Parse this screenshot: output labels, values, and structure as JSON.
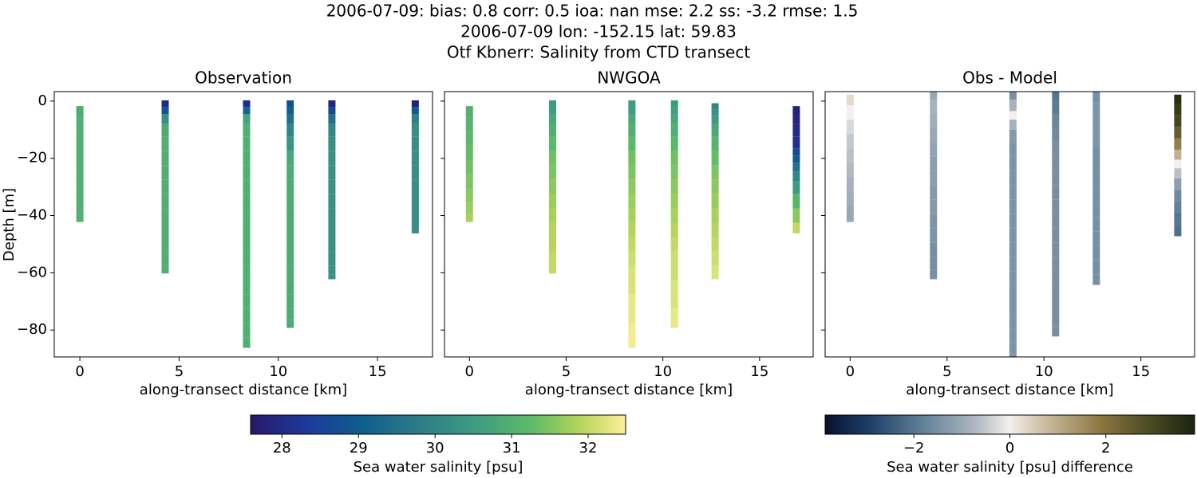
{
  "chart_data": {
    "type": "scatter",
    "title_lines": [
      "2006-07-09: bias: 0.8  corr: 0.5  ioa: nan  mse: 2.2  ss: -3.2  rmse: 1.5",
      "2006-07-09 lon: -152.15 lat: 59.83",
      "Otf Kbnerr: Salinity from CTD transect"
    ],
    "panels": [
      {
        "title": "Observation",
        "xlabel": "along-transect distance [km]",
        "ylabel": "Depth [m]",
        "show_ytick_labels": true,
        "colorbar": 0,
        "xlim": [
          -1.29,
          17.77
        ],
        "ylim": [
          -89.4,
          3.3
        ],
        "xticks": [
          0,
          5,
          10,
          15
        ],
        "yticks": [
          0,
          {
            "value": -20,
            "label": "−20"
          },
          {
            "value": -40,
            "label": "−40"
          },
          {
            "value": -60,
            "label": "−60"
          },
          {
            "value": -80,
            "label": "−80"
          }
        ],
        "profiles": [
          {
            "x": 0,
            "depth": [
              -3,
              -8,
              -13,
              -18,
              -23,
              -28,
              -33,
              -38,
              -41
            ],
            "values": [
              30.9,
              31,
              31,
              31,
              31,
              31,
              31,
              31,
              31
            ]
          },
          {
            "x": 4.3,
            "depth": [
              -1,
              -3,
              -6,
              -10,
              -15,
              -20,
              -25,
              -30,
              -35,
              -40,
              -45,
              -50,
              -55,
              -59
            ],
            "values": [
              27.9,
              28.8,
              30.2,
              30.9,
              31,
              31,
              31,
              31,
              31,
              31,
              31,
              31,
              31,
              31
            ]
          },
          {
            "x": 8.4,
            "depth": [
              -1,
              -3,
              -6,
              -10,
              -15,
              -20,
              -25,
              -30,
              -35,
              -40,
              -45,
              -50,
              -55,
              -60,
              -65,
              -70,
              -75,
              -80,
              -85
            ],
            "values": [
              28,
              29.2,
              30.7,
              31,
              31,
              31,
              31,
              31,
              31,
              31,
              31,
              31,
              31,
              31,
              31,
              31,
              31,
              31,
              31
            ]
          },
          {
            "x": 10.6,
            "depth": [
              -1,
              -3,
              -6,
              -10,
              -15,
              -20,
              -25,
              -30,
              -35,
              -40,
              -45,
              -50,
              -55,
              -60,
              -65,
              -70,
              -75,
              -78
            ],
            "values": [
              28.8,
              29.1,
              29.5,
              30,
              30.4,
              30.8,
              30.9,
              30.9,
              30.9,
              30.9,
              30.9,
              30.9,
              30.9,
              30.9,
              30.9,
              30.9,
              30.9,
              30.9
            ]
          },
          {
            "x": 12.7,
            "depth": [
              -1,
              -3,
              -6,
              -10,
              -15,
              -20,
              -25,
              -30,
              -35,
              -40,
              -45,
              -50,
              -55,
              -60,
              -61
            ],
            "values": [
              27.9,
              28.6,
              29.5,
              30,
              30.2,
              30.3,
              30.3,
              30.3,
              30.3,
              30.3,
              30.3,
              30.3,
              30.3,
              30.3,
              30.3
            ]
          },
          {
            "x": 16.9,
            "depth": [
              -1,
              -3,
              -6,
              -10,
              -15,
              -20,
              -25,
              -30,
              -35,
              -40,
              -45
            ],
            "values": [
              27.8,
              29,
              29.9,
              30.2,
              30.2,
              30.2,
              30.2,
              30.2,
              30.2,
              30.2,
              30.2
            ]
          }
        ]
      },
      {
        "title": "NWGOA",
        "xlabel": "along-transect distance [km]",
        "show_ytick_labels": false,
        "colorbar": 0,
        "xlim": [
          -1.29,
          17.77
        ],
        "ylim": [
          -89.4,
          3.3
        ],
        "xticks": [
          0,
          5,
          10,
          15
        ],
        "yticks": [
          0,
          -20,
          -40,
          -60,
          -80
        ],
        "profiles": [
          {
            "x": 0,
            "depth": [
              -3,
              -8,
              -13,
              -18,
              -23,
              -28,
              -33,
              -38,
              -41
            ],
            "values": [
              31,
              31.1,
              31.2,
              31.3,
              31.4,
              31.5,
              31.6,
              31.7,
              31.8
            ]
          },
          {
            "x": 4.3,
            "depth": [
              -1,
              -3,
              -6,
              -10,
              -15,
              -20,
              -25,
              -30,
              -35,
              -40,
              -45,
              -50,
              -55,
              -59
            ],
            "values": [
              30.5,
              30.6,
              30.8,
              31,
              31.2,
              31.4,
              31.5,
              31.6,
              31.7,
              31.8,
              31.9,
              31.9,
              32,
              32
            ]
          },
          {
            "x": 8.4,
            "depth": [
              -1,
              -3,
              -6,
              -10,
              -15,
              -20,
              -25,
              -30,
              -35,
              -40,
              -45,
              -50,
              -55,
              -60,
              -65,
              -70,
              -75,
              -80,
              -85
            ],
            "values": [
              30.5,
              30.6,
              30.8,
              31,
              31.2,
              31.4,
              31.5,
              31.6,
              31.7,
              31.8,
              31.9,
              32,
              32.1,
              32.2,
              32.2,
              32.3,
              32.3,
              32.4,
              32.4
            ]
          },
          {
            "x": 10.6,
            "depth": [
              -1,
              -3,
              -6,
              -10,
              -15,
              -20,
              -25,
              -30,
              -35,
              -40,
              -45,
              -50,
              -55,
              -60,
              -65,
              -70,
              -75,
              -78
            ],
            "values": [
              30.5,
              30.6,
              30.8,
              31,
              31.2,
              31.4,
              31.5,
              31.6,
              31.7,
              31.8,
              31.9,
              32,
              32.1,
              32.1,
              32.2,
              32.2,
              32.3,
              32.3
            ]
          },
          {
            "x": 12.7,
            "depth": [
              -2,
              -4,
              -6,
              -10,
              -15,
              -20,
              -25,
              -30,
              -35,
              -40,
              -45,
              -50,
              -55,
              -60,
              -61
            ],
            "values": [
              30,
              30.2,
              30.5,
              30.8,
              31.1,
              31.3,
              31.5,
              31.6,
              31.7,
              31.8,
              31.9,
              32,
              32.1,
              32.2,
              32.2
            ]
          },
          {
            "x": 16.9,
            "depth": [
              -3,
              -6,
              -10,
              -15,
              -18,
              -20,
              -23,
              -26,
              -30,
              -35,
              -40,
              -45
            ],
            "values": [
              27.8,
              27.9,
              28,
              28.1,
              28.6,
              29,
              29.5,
              30,
              30.5,
              31.1,
              31.6,
              32
            ]
          }
        ]
      },
      {
        "title": "Obs - Model",
        "xlabel": "along-transect distance [km]",
        "show_ytick_labels": false,
        "colorbar": 1,
        "xlim": [
          -1.29,
          17.77
        ],
        "ylim": [
          -89.4,
          3.3
        ],
        "xticks": [
          0,
          5,
          10,
          15
        ],
        "yticks": [
          0,
          -20,
          -40,
          -60,
          -80
        ],
        "profiles": [
          {
            "x": 0,
            "depth": [
              1,
              -4,
              -9,
              -14,
              -19,
              -24,
              -29,
              -34,
              -39,
              -41
            ],
            "values": [
              0.3,
              0,
              -0.3,
              -0.5,
              -0.6,
              -0.7,
              -0.8,
              -0.9,
              -1,
              -1
            ]
          },
          {
            "x": 4.3,
            "depth": [
              3,
              -2,
              -7,
              -12,
              -17,
              -22,
              -27,
              -32,
              -37,
              -42,
              -47,
              -52,
              -57,
              -61
            ],
            "values": [
              -1,
              -0.8,
              -0.9,
              -1,
              -1.1,
              -1.2,
              -1.2,
              -1.3,
              -1.3,
              -1.4,
              -1.4,
              -1.5,
              -1.5,
              -1.5
            ]
          },
          {
            "x": 8.4,
            "depth": [
              3,
              -2,
              -5,
              -8,
              -12,
              -17,
              -22,
              -27,
              -32,
              -37,
              -42,
              -47,
              -52,
              -57,
              -62,
              -67,
              -72,
              -77,
              -82,
              -87,
              -90
            ],
            "values": [
              -1.5,
              -0.8,
              0,
              -0.8,
              -1.3,
              -1.4,
              -1.4,
              -1.4,
              -1.4,
              -1.4,
              -1.4,
              -1.4,
              -1.4,
              -1.4,
              -1.4,
              -1.4,
              -1.4,
              -1.4,
              -1.4,
              -1.4,
              -1.4
            ]
          },
          {
            "x": 10.6,
            "depth": [
              3,
              -2,
              -7,
              -12,
              -17,
              -22,
              -27,
              -32,
              -37,
              -42,
              -47,
              -52,
              -57,
              -62,
              -67,
              -72,
              -77,
              -81
            ],
            "values": [
              -2,
              -1.9,
              -1.7,
              -1.6,
              -1.5,
              -1.5,
              -1.5,
              -1.5,
              -1.5,
              -1.5,
              -1.5,
              -1.5,
              -1.5,
              -1.5,
              -1.5,
              -1.5,
              -1.5,
              -1.5
            ]
          },
          {
            "x": 12.7,
            "depth": [
              2,
              -3,
              -8,
              -13,
              -18,
              -23,
              -28,
              -33,
              -38,
              -43,
              -48,
              -53,
              -58,
              -63
            ],
            "values": [
              -1.5,
              -1.4,
              -1.4,
              -1.4,
              -1.5,
              -1.5,
              -1.5,
              -1.5,
              -1.5,
              -1.5,
              -1.5,
              -1.5,
              -1.5,
              -1.5
            ]
          },
          {
            "x": 16.9,
            "depth": [
              1,
              -3,
              -7,
              -11,
              -15,
              -19,
              -22,
              -25,
              -29,
              -33,
              -37,
              -41,
              -46
            ],
            "values": [
              3.6,
              3.3,
              3,
              2.5,
              1.8,
              0.9,
              0,
              -0.6,
              -1.2,
              -1.6,
              -1.8,
              -2,
              -2.1
            ]
          }
        ]
      }
    ],
    "colorbars": [
      {
        "label": "Sea water salinity [psu]",
        "cmap": "haline",
        "clim": [
          27.59,
          32.49
        ],
        "ticks": [
          28,
          29,
          30,
          31,
          32
        ]
      },
      {
        "label": "Sea water salinity [psu] difference",
        "cmap": "diff",
        "clim": [
          -3.85,
          3.85
        ],
        "ticks": [
          {
            "value": -2,
            "label": "−2"
          },
          0,
          2
        ]
      }
    ]
  }
}
